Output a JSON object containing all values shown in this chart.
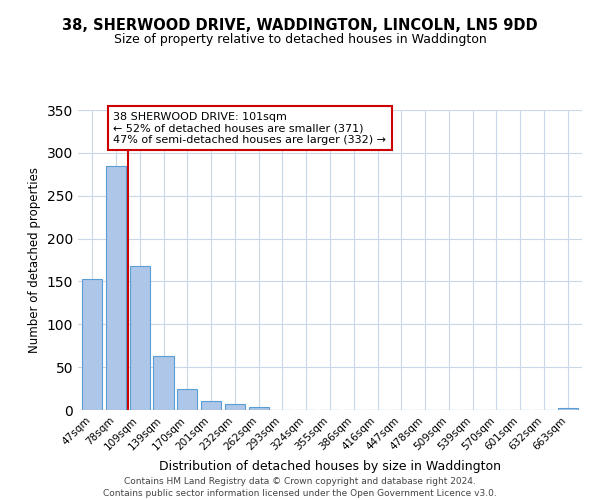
{
  "title": "38, SHERWOOD DRIVE, WADDINGTON, LINCOLN, LN5 9DD",
  "subtitle": "Size of property relative to detached houses in Waddington",
  "xlabel": "Distribution of detached houses by size in Waddington",
  "ylabel": "Number of detached properties",
  "bar_labels": [
    "47sqm",
    "78sqm",
    "109sqm",
    "139sqm",
    "170sqm",
    "201sqm",
    "232sqm",
    "262sqm",
    "293sqm",
    "324sqm",
    "355sqm",
    "386sqm",
    "416sqm",
    "447sqm",
    "478sqm",
    "509sqm",
    "539sqm",
    "570sqm",
    "601sqm",
    "632sqm",
    "663sqm"
  ],
  "bar_values": [
    153,
    285,
    168,
    63,
    24,
    10,
    7,
    3,
    0,
    0,
    0,
    0,
    0,
    0,
    0,
    0,
    0,
    0,
    0,
    0,
    2
  ],
  "bar_color": "#aec6e8",
  "bar_edge_color": "#5a9fd4",
  "vline_color": "#cc0000",
  "annotation_title": "38 SHERWOOD DRIVE: 101sqm",
  "annotation_line1": "← 52% of detached houses are smaller (371)",
  "annotation_line2": "47% of semi-detached houses are larger (332) →",
  "annotation_box_color": "#ffffff",
  "annotation_box_edge": "#cc0000",
  "ylim": [
    0,
    350
  ],
  "yticks": [
    0,
    50,
    100,
    150,
    200,
    250,
    300,
    350
  ],
  "footer1": "Contains HM Land Registry data © Crown copyright and database right 2024.",
  "footer2": "Contains public sector information licensed under the Open Government Licence v3.0.",
  "background_color": "#ffffff",
  "grid_color": "#c8d8e8"
}
